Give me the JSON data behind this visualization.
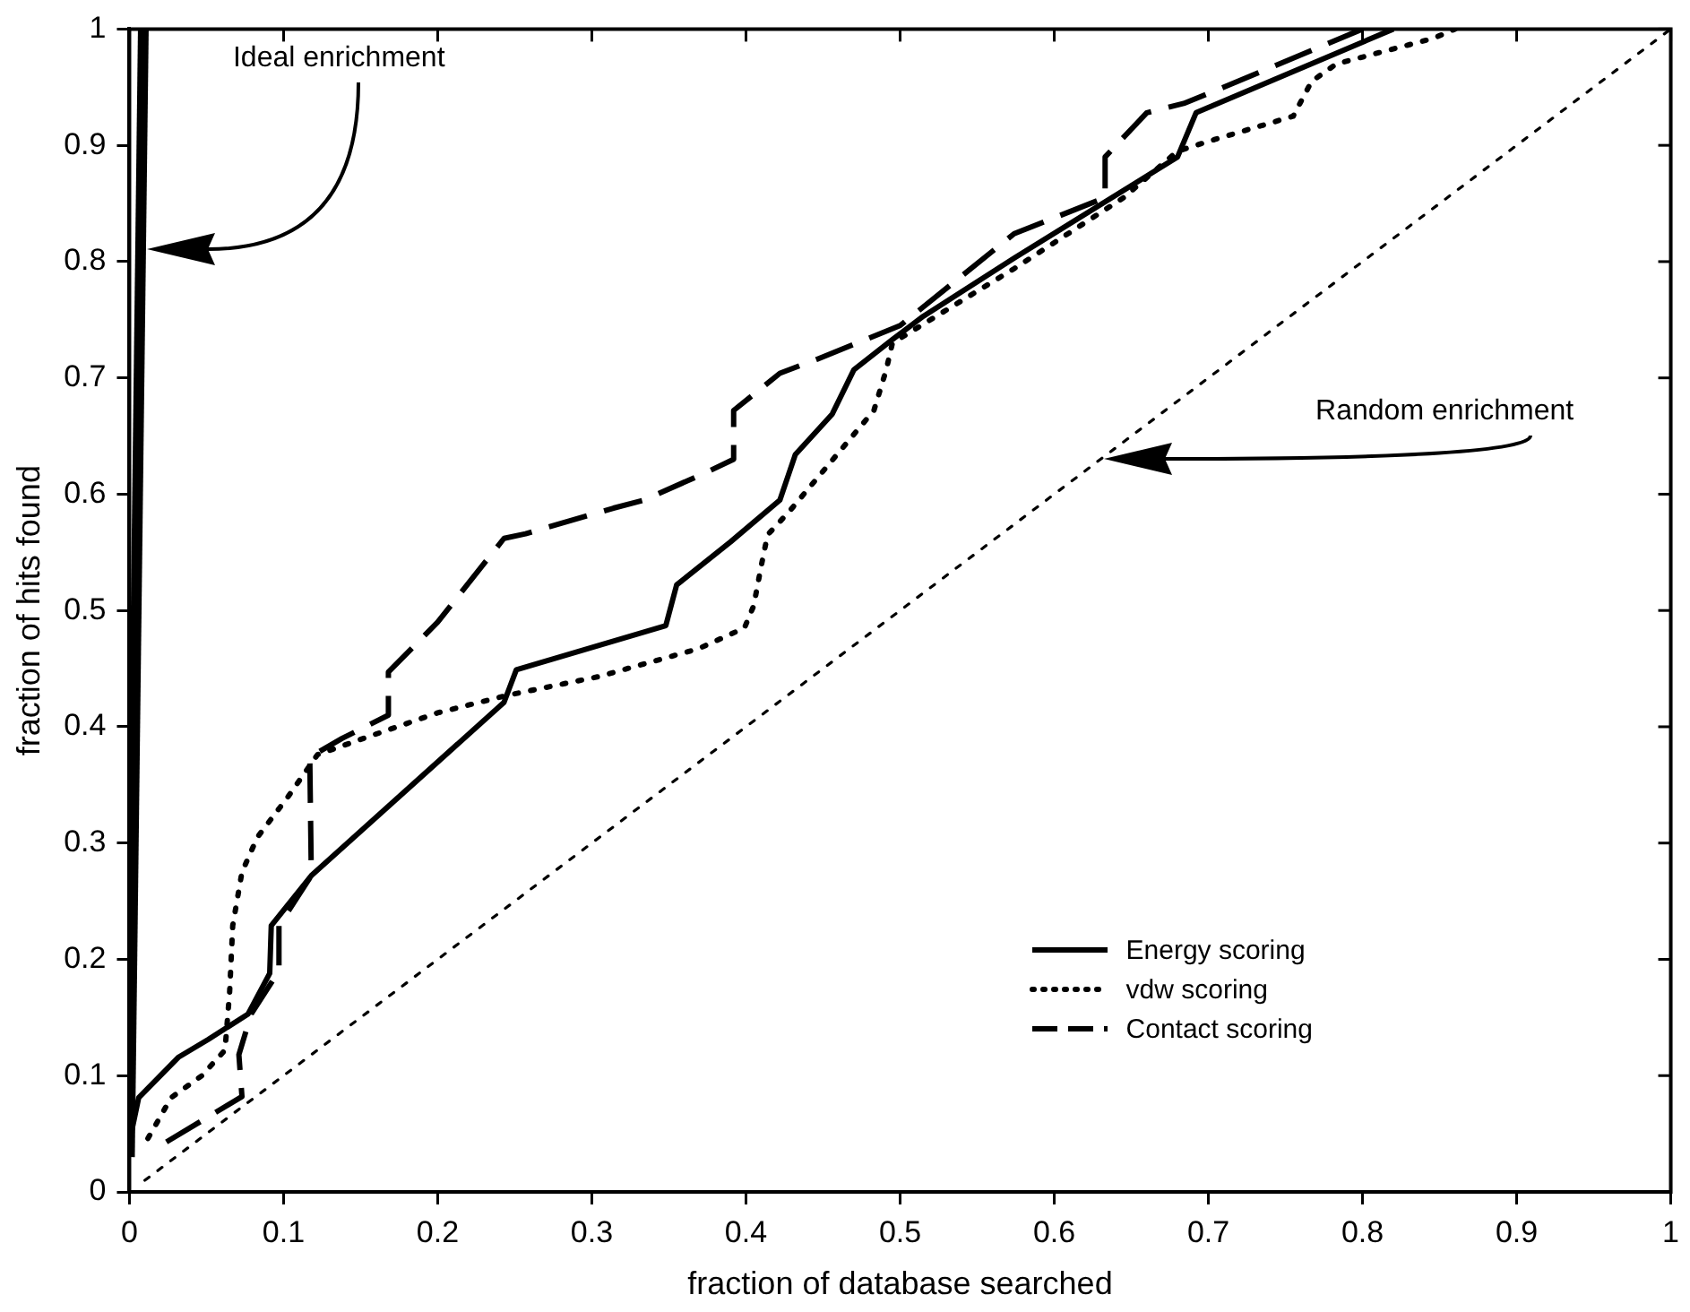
{
  "chart_data": {
    "type": "line",
    "xlabel": "fraction of database searched",
    "ylabel": "fraction of hits found",
    "xlim": [
      0,
      1
    ],
    "ylim": [
      0,
      1
    ],
    "xticks": [
      0,
      0.1,
      0.2,
      0.3,
      0.4,
      0.5,
      0.6,
      0.7,
      0.8,
      0.9,
      1
    ],
    "yticks": [
      0,
      0.1,
      0.2,
      0.3,
      0.4,
      0.5,
      0.6,
      0.7,
      0.8,
      0.9,
      1
    ],
    "grid": false,
    "legend": "bottom right",
    "marker": "none",
    "series": [
      {
        "name": "Energy scoring",
        "color": "#000000",
        "line_style": "solid",
        "x": [
          0,
          0.006,
          0.032,
          0.051,
          0.077,
          0.091,
          0.092,
          0.118,
          0.243,
          0.251,
          0.348,
          0.355,
          0.39,
          0.422,
          0.432,
          0.456,
          0.47,
          0.495,
          0.515,
          0.574,
          0.68,
          0.692,
          0.82
        ],
        "values": [
          0.043,
          0.081,
          0.116,
          0.131,
          0.153,
          0.188,
          0.229,
          0.272,
          0.421,
          0.449,
          0.487,
          0.522,
          0.559,
          0.595,
          0.634,
          0.669,
          0.707,
          0.733,
          0.753,
          0.803,
          0.89,
          0.928,
          1
        ]
      },
      {
        "name": "vdw scoring",
        "color": "#000000",
        "line_style": "dotted",
        "x": [
          0.012,
          0.027,
          0.047,
          0.062,
          0.065,
          0.067,
          0.073,
          0.083,
          0.103,
          0.122,
          0.154,
          0.2,
          0.245,
          0.304,
          0.369,
          0.399,
          0.405,
          0.41,
          0.414,
          0.428,
          0.459,
          0.483,
          0.491,
          0.495,
          0.574,
          0.645,
          0.68,
          0.704,
          0.755,
          0.767,
          0.783,
          0.846,
          0.86
        ],
        "values": [
          0.046,
          0.081,
          0.1,
          0.122,
          0.172,
          0.229,
          0.275,
          0.305,
          0.34,
          0.376,
          0.391,
          0.412,
          0.427,
          0.443,
          0.467,
          0.485,
          0.504,
          0.539,
          0.565,
          0.585,
          0.634,
          0.672,
          0.707,
          0.73,
          0.794,
          0.855,
          0.895,
          0.905,
          0.925,
          0.955,
          0.97,
          0.992,
          1
        ]
      },
      {
        "name": "Contact scoring",
        "color": "#000000",
        "line_style": "dashed",
        "x": [
          0.024,
          0.073,
          0.071,
          0.079,
          0.097,
          0.097,
          0.118,
          0.117,
          0.138,
          0.168,
          0.168,
          0.2,
          0.243,
          0.257,
          0.314,
          0.334,
          0.373,
          0.392,
          0.392,
          0.422,
          0.446,
          0.5,
          0.574,
          0.633,
          0.633,
          0.66,
          0.684,
          0.71,
          0.8
        ],
        "values": [
          0.043,
          0.082,
          0.118,
          0.153,
          0.19,
          0.229,
          0.272,
          0.374,
          0.39,
          0.41,
          0.447,
          0.49,
          0.562,
          0.566,
          0.588,
          0.595,
          0.618,
          0.63,
          0.672,
          0.704,
          0.716,
          0.745,
          0.824,
          0.855,
          0.89,
          0.928,
          0.936,
          0.95,
          1
        ]
      },
      {
        "color": "#000000",
        "line_style": "solid",
        "x": [
          0,
          0.009
        ],
        "values": [
          0.03,
          1
        ]
      },
      {
        "color": "#000000",
        "line_style": "dotted",
        "x": [
          0.01,
          1
        ],
        "values": [
          0.01,
          1
        ]
      }
    ],
    "annotations": [
      "Ideal enrichment",
      "Random enrichment"
    ]
  }
}
